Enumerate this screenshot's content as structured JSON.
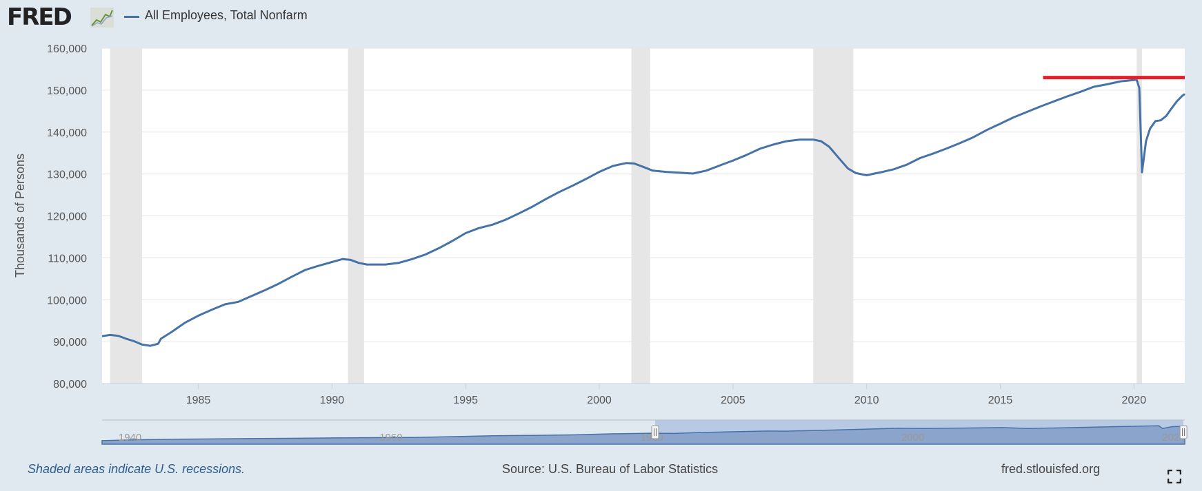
{
  "header": {
    "logo_text": "FRED",
    "logo_icon": "line-chart-icon",
    "legend_label": "All Employees, Total Nonfarm"
  },
  "colors": {
    "series": "#4572a7",
    "annotation": "#e0202a",
    "recession": "#e6e6e6",
    "navigator_fill": "#8aa4cc",
    "navigator_mask": "#b8c9e3"
  },
  "chart_data": {
    "type": "line",
    "title": "",
    "xlabel": "",
    "ylabel": "Thousands of Persons",
    "xlim": [
      1981.4,
      2021.9
    ],
    "ylim": [
      80000,
      160000
    ],
    "grid": true,
    "legend": "top-left",
    "xticks": [
      1985,
      1990,
      1995,
      2000,
      2005,
      2010,
      2015,
      2020
    ],
    "yticks": [
      80000,
      90000,
      100000,
      110000,
      120000,
      130000,
      140000,
      150000,
      160000
    ],
    "ytick_labels": [
      "80,000",
      "90,000",
      "100,000",
      "110,000",
      "120,000",
      "130,000",
      "140,000",
      "150,000",
      "160,000"
    ],
    "recessions": [
      [
        1981.7,
        1982.9
      ],
      [
        1990.6,
        1991.2
      ],
      [
        2001.2,
        2001.9
      ],
      [
        2008.0,
        2009.5
      ],
      [
        2020.1,
        2020.3
      ]
    ],
    "annotation_line": {
      "x_start": 2016.6,
      "x_end": 2021.9,
      "y": 153000
    },
    "series": [
      {
        "name": "All Employees, Total Nonfarm",
        "x": [
          1981.4,
          1981.7,
          1982.0,
          1982.3,
          1982.6,
          1982.9,
          1983.2,
          1983.5,
          1983.6,
          1984.0,
          1984.5,
          1985.0,
          1985.5,
          1986.0,
          1986.5,
          1987.0,
          1987.5,
          1988.0,
          1988.5,
          1989.0,
          1989.5,
          1990.0,
          1990.4,
          1990.7,
          1991.0,
          1991.3,
          1991.6,
          1992.0,
          1992.5,
          1993.0,
          1993.5,
          1994.0,
          1994.5,
          1995.0,
          1995.5,
          1996.0,
          1996.5,
          1997.0,
          1997.5,
          1998.0,
          1998.5,
          1999.0,
          1999.5,
          2000.0,
          2000.5,
          2001.0,
          2001.3,
          2001.6,
          2002.0,
          2002.5,
          2003.0,
          2003.5,
          2004.0,
          2004.5,
          2005.0,
          2005.5,
          2006.0,
          2006.5,
          2007.0,
          2007.5,
          2008.0,
          2008.3,
          2008.6,
          2009.0,
          2009.3,
          2009.6,
          2010.0,
          2010.3,
          2010.6,
          2011.0,
          2011.5,
          2012.0,
          2012.5,
          2013.0,
          2013.5,
          2014.0,
          2014.5,
          2015.0,
          2015.5,
          2016.0,
          2016.5,
          2017.0,
          2017.5,
          2018.0,
          2018.5,
          2019.0,
          2019.5,
          2020.0,
          2020.1,
          2020.2,
          2020.3,
          2020.45,
          2020.6,
          2020.8,
          2021.0,
          2021.2,
          2021.4,
          2021.6,
          2021.8,
          2021.9
        ],
        "y": [
          91300,
          91600,
          91400,
          90700,
          90100,
          89300,
          89000,
          89500,
          90700,
          92300,
          94500,
          96200,
          97600,
          98900,
          99500,
          100900,
          102300,
          103800,
          105500,
          107100,
          108100,
          109000,
          109700,
          109500,
          108800,
          108400,
          108400,
          108400,
          108800,
          109700,
          110800,
          112300,
          114000,
          115900,
          117100,
          117900,
          119100,
          120600,
          122200,
          124000,
          125700,
          127200,
          128800,
          130500,
          131900,
          132600,
          132500,
          131800,
          130800,
          130500,
          130300,
          130100,
          130800,
          132000,
          133200,
          134500,
          136000,
          137000,
          137800,
          138200,
          138200,
          137800,
          136500,
          133500,
          131300,
          130200,
          129700,
          130100,
          130500,
          131100,
          132200,
          133800,
          134900,
          136100,
          137400,
          138800,
          140500,
          142000,
          143500,
          144800,
          146100,
          147300,
          148500,
          149600,
          150800,
          151400,
          152100,
          152400,
          152500,
          150500,
          130400,
          137800,
          140800,
          142600,
          142800,
          143800,
          145600,
          147300,
          148600,
          149100
        ]
      }
    ]
  },
  "navigator": {
    "labels": [
      "1940",
      "1960",
      "1980",
      "2000",
      "2020"
    ],
    "label_years": [
      1940,
      1960,
      1980,
      2000,
      2020
    ],
    "range": [
      1939,
      2022
    ],
    "selected": [
      1981.4,
      2021.9
    ],
    "series_x": [
      1939,
      1942,
      1945,
      1948,
      1951,
      1954,
      1957,
      1960,
      1963,
      1966,
      1969,
      1972,
      1975,
      1978,
      1981,
      1982.9,
      1985,
      1990,
      1991.5,
      1995,
      2000,
      2002,
      2005,
      2008,
      2010,
      2015,
      2020,
      2020.3,
      2021,
      2022
    ],
    "series_y": [
      30000,
      37000,
      41000,
      44000,
      47000,
      49000,
      52000,
      54000,
      56000,
      63000,
      70000,
      73000,
      77000,
      86000,
      91000,
      89000,
      97000,
      109000,
      108000,
      117000,
      132000,
      130500,
      133700,
      138000,
      129800,
      141800,
      152400,
      130400,
      145000,
      149000
    ]
  },
  "footer": {
    "note": "Shaded areas indicate U.S. recessions.",
    "source": "Source: U.S. Bureau of Labor Statistics",
    "site": "fred.stlouisfed.org"
  },
  "controls": {
    "fullscreen_icon": "fullscreen-icon",
    "navigator_handle_icon": "drag-handle-icon"
  }
}
